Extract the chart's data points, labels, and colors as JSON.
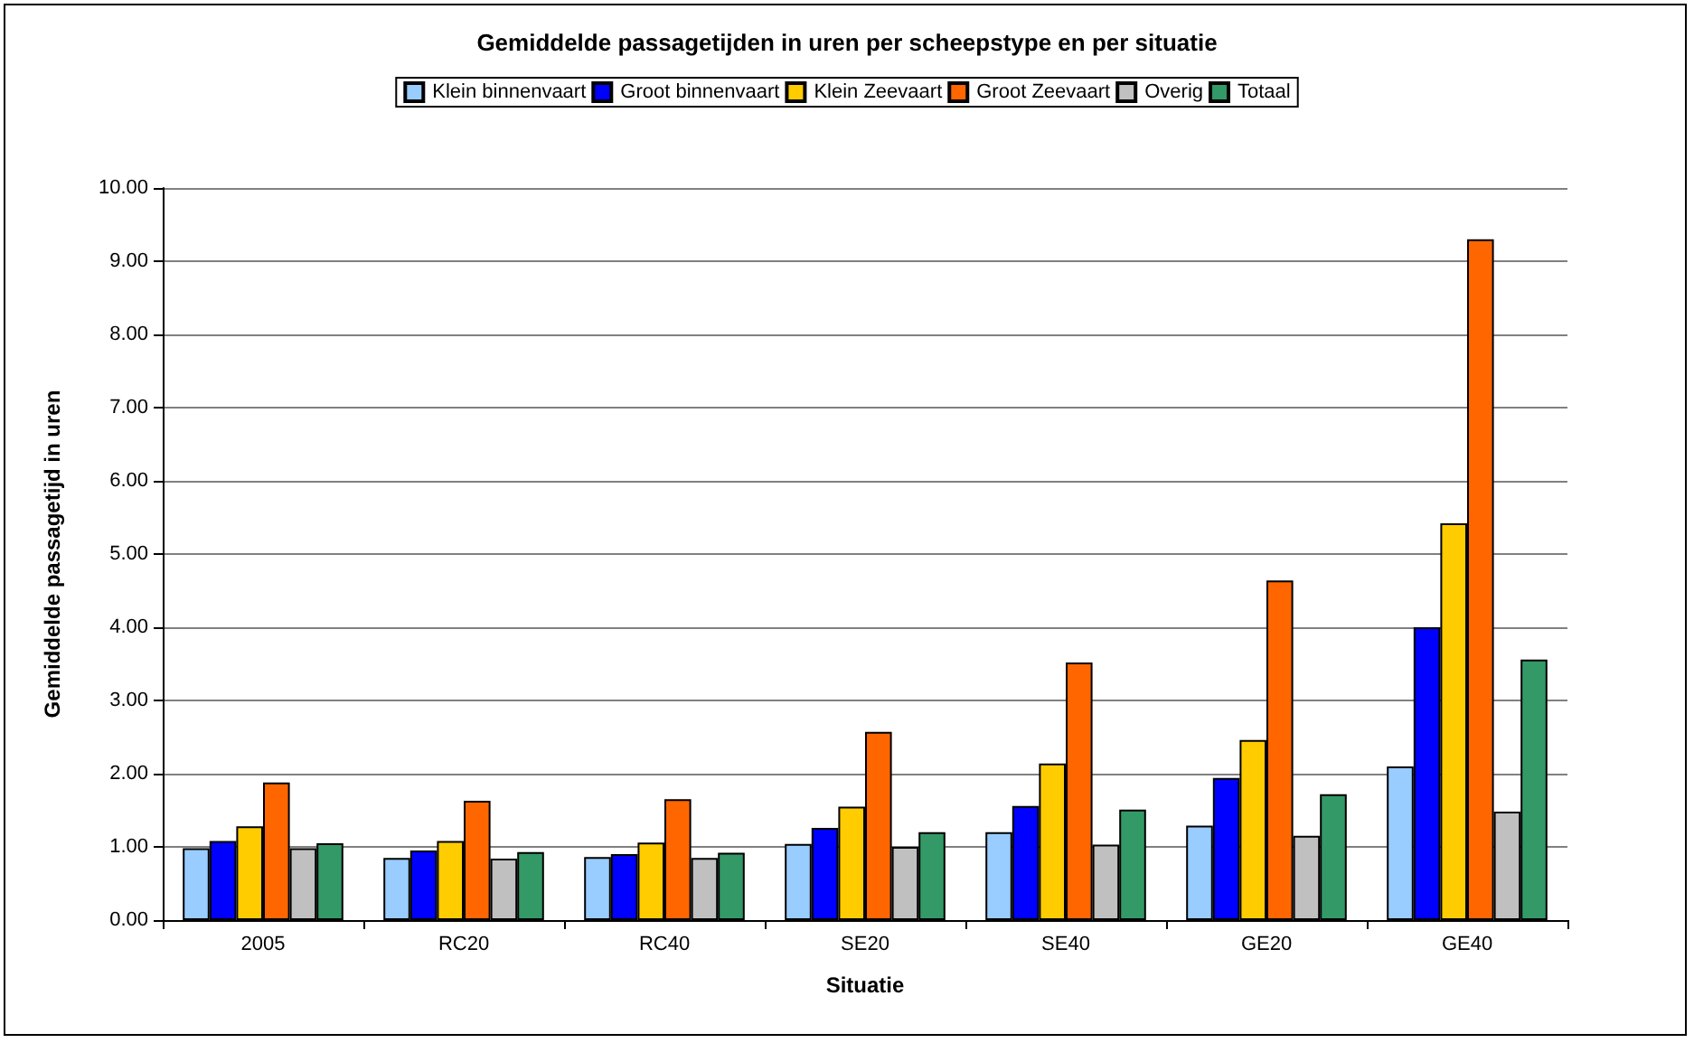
{
  "chart_data": {
    "type": "bar",
    "title": "Gemiddelde passagetijden in uren per scheepstype en per situatie",
    "xlabel": "Situatie",
    "ylabel": "Gemiddelde passagetijd in uren",
    "categories": [
      "2005",
      "RC20",
      "RC40",
      "SE20",
      "SE40",
      "GE20",
      "GE40"
    ],
    "series": [
      {
        "name": "Klein binnenvaart",
        "color": "#99ccff",
        "values": [
          0.98,
          0.85,
          0.86,
          1.04,
          1.2,
          1.29,
          2.1
        ]
      },
      {
        "name": "Groot binnenvaart",
        "color": "#0000ff",
        "values": [
          1.08,
          0.95,
          0.9,
          1.26,
          1.56,
          1.94,
          4.0
        ]
      },
      {
        "name": "Klein Zeevaart",
        "color": "#ffcc00",
        "values": [
          1.28,
          1.08,
          1.06,
          1.55,
          2.14,
          2.46,
          5.42
        ]
      },
      {
        "name": "Groot Zeevaart",
        "color": "#ff6600",
        "values": [
          1.88,
          1.63,
          1.65,
          2.57,
          3.52,
          4.64,
          9.3
        ]
      },
      {
        "name": "Overig",
        "color": "#c0c0c0",
        "values": [
          0.98,
          0.84,
          0.85,
          1.0,
          1.03,
          1.15,
          1.48
        ]
      },
      {
        "name": "Totaal",
        "color": "#339966",
        "values": [
          1.05,
          0.93,
          0.92,
          1.2,
          1.51,
          1.72,
          3.56
        ]
      }
    ],
    "ylim": [
      0,
      10
    ],
    "yticks": [
      {
        "value": 0,
        "label": "0.00"
      },
      {
        "value": 1,
        "label": "1.00"
      },
      {
        "value": 2,
        "label": "2.00"
      },
      {
        "value": 3,
        "label": "3.00"
      },
      {
        "value": 4,
        "label": "4.00"
      },
      {
        "value": 5,
        "label": "5.00"
      },
      {
        "value": 6,
        "label": "6.00"
      },
      {
        "value": 7,
        "label": "7.00"
      },
      {
        "value": 8,
        "label": "8.00"
      },
      {
        "value": 9,
        "label": "9.00"
      },
      {
        "value": 10,
        "label": "10.00"
      }
    ],
    "grid": "y",
    "legend": "top"
  }
}
